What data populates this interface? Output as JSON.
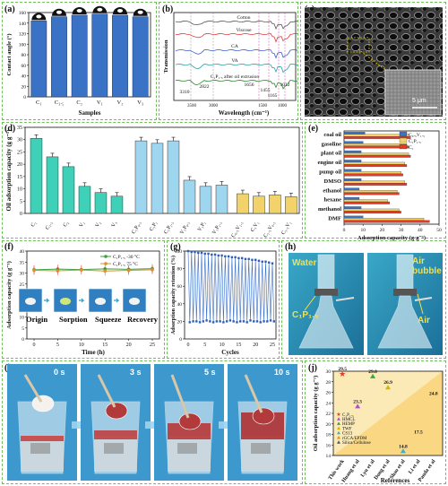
{
  "panel_labels": {
    "a": "(a)",
    "b": "(b)",
    "c": "(c)",
    "d": "(d)",
    "e": "(e)",
    "f": "(f)",
    "g": "(g)",
    "h": "(h)",
    "i": "(i)",
    "j": "(j)"
  },
  "colors": {
    "border": "#6fbf5a",
    "blue": "#3a73c5",
    "cyan": "#3fd0b8",
    "light_blue": "#9fd6ef",
    "yellow": "#f2d36b",
    "orange": "#e38c2c",
    "red": "#e23b2a",
    "green": "#3c9e3c"
  },
  "photo_labels": {
    "c_scale": "5 μm",
    "h_water": "Water",
    "h_air_bubble": "Air\nbubble",
    "h_air": "Air",
    "h_sample": "C₁P₁.₅",
    "f_origin": "Origin",
    "f_sorption": "Sorption",
    "f_squeeze": "Squeeze",
    "f_recovery": "Recovery",
    "i_t0": "0 s",
    "i_t3": "3 s",
    "i_t5": "5 s",
    "i_t10": "10 s"
  },
  "chart_data": [
    {
      "id": "a",
      "type": "bar",
      "categories": [
        "C₁",
        "C₁.₅",
        "C₂",
        "V₁",
        "V₂",
        "V₃"
      ],
      "values": [
        144,
        152,
        155,
        157,
        155,
        152
      ],
      "ylabel": "Contact angle (°)",
      "xlabel": "Samples",
      "ylim": [
        0,
        160
      ],
      "yticks": [
        0,
        20,
        40,
        60,
        80,
        100,
        120,
        140,
        160
      ]
    },
    {
      "id": "b",
      "type": "line",
      "series": [
        {
          "name": "Cotton"
        },
        {
          "name": "Viscose"
        },
        {
          "name": "CA"
        },
        {
          "name": "VA"
        },
        {
          "name": "C₁P₁.₅ after oil extrusion"
        }
      ],
      "xlabel": "Wavelength (cm⁻¹)",
      "ylabel": "Transmission",
      "xticks": [
        3500,
        3000,
        1500,
        1000
      ],
      "annotations": [
        "3310",
        "2822",
        "1656",
        "1455",
        "1165",
        "1012"
      ]
    },
    {
      "id": "d",
      "type": "bar",
      "categories": [
        "C₁",
        "C₁.₅",
        "C₂",
        "V₁",
        "V₂",
        "V₃",
        "C₁P₀.₅",
        "C₁P₁",
        "C₁P₁.₅",
        "V₁P₀.₅",
        "V₁P₁",
        "V₁P₁.₅",
        "C₀.₅V₁.₅",
        "C₁V₁",
        "C₁.₅V₀.₅",
        "C₁.₅V₁"
      ],
      "values": [
        30.5,
        23,
        19,
        11,
        8.5,
        7,
        29.5,
        28.5,
        29.5,
        13.5,
        11,
        11.5,
        8,
        7,
        7.5,
        6.8
      ],
      "ylabel": "Oil adsorption capacity (g g⁻¹)",
      "ylim": [
        0,
        35
      ],
      "yticks": [
        0,
        5,
        10,
        15,
        20,
        25,
        30,
        35
      ]
    },
    {
      "id": "e",
      "type": "bar",
      "categories": [
        "coal oil",
        "gasoline",
        "plant oil",
        "engine oil",
        "pump oil",
        "DMSO",
        "ethanol",
        "hexane",
        "methanol",
        "DMF"
      ],
      "series": [
        {
          "name": "C₀.₅V₁.₅",
          "values": [
            11,
            10,
            9,
            9,
            9,
            9,
            8,
            8,
            9,
            10
          ]
        },
        {
          "name": "C₁P₁.₅",
          "values": [
            34,
            33,
            34,
            32,
            30,
            32,
            28,
            23,
            29,
            42
          ]
        },
        {
          "name": "C₁",
          "values": [
            35,
            34,
            35,
            33,
            31,
            33,
            29,
            24,
            30,
            45
          ]
        }
      ],
      "xlabel": "Adsorption capacity (g·g⁻¹)",
      "xlim": [
        0,
        50
      ],
      "xticks": [
        0,
        10,
        20,
        30,
        40,
        50
      ]
    },
    {
      "id": "f",
      "type": "line",
      "x": [
        0,
        5,
        10,
        15,
        20,
        25
      ],
      "series": [
        {
          "name": "C₁P₁.₅ -30 °C",
          "values": [
            31.5,
            31.8,
            31.6,
            31.9,
            31.7,
            32.0
          ]
        },
        {
          "name": "C₁P₁.₅ 75 °C",
          "values": [
            31.2,
            31.0,
            31.4,
            30.9,
            31.2,
            31.5
          ]
        }
      ],
      "xlabel": "Time (h)",
      "ylabel": "Adsorption capacity (g g⁻¹)",
      "ylim": [
        0,
        40
      ],
      "yticks": [
        0,
        5,
        10,
        15,
        20,
        25,
        30,
        35,
        40
      ],
      "xticks": [
        0,
        5,
        10,
        15,
        20,
        25
      ]
    },
    {
      "id": "g",
      "type": "line",
      "xlabel": "Cycles",
      "ylabel": "Adsorption capacity retention (%)",
      "ylim": [
        0,
        100
      ],
      "yticks": [
        0,
        20,
        40,
        60,
        80,
        100
      ],
      "xticks": [
        0,
        5,
        10,
        15,
        20,
        25
      ],
      "high_values": [
        100,
        99,
        99,
        98,
        98,
        97,
        97,
        96,
        96,
        95,
        95,
        94,
        94,
        93,
        93,
        92,
        92,
        91,
        91,
        90,
        90,
        89,
        88,
        88,
        87,
        86
      ],
      "low_values": [
        19,
        20,
        20,
        19,
        20,
        21,
        20,
        19,
        20,
        20,
        19,
        20,
        21,
        20,
        19,
        20,
        20,
        19,
        21,
        20,
        20,
        19,
        20,
        20,
        21,
        20
      ]
    },
    {
      "id": "j",
      "type": "scatter",
      "categories": [
        "This work",
        "Huang et al",
        "Lyu et al",
        "Dong et al",
        "Shao et al",
        "Li et al",
        "Panda et al"
      ],
      "values": [
        29.5,
        23.3,
        29.0,
        26.9,
        14.8,
        17.5,
        24.8
      ],
      "labels": [
        "29.5",
        "23.3",
        "29.0",
        "26.9",
        "14.8",
        "17.5",
        "24.8"
      ],
      "legend": [
        "C₁P₁.₅",
        "HMCL",
        "HEMP",
        "TWF",
        "CS13",
        "rGCA/EPDM",
        "Silica/Cellulose"
      ],
      "xlabel": "References",
      "ylabel": "Oil adsorption capacity (g g⁻¹)",
      "ylim": [
        14,
        30
      ],
      "yticks": [
        14,
        16,
        18,
        20,
        22,
        24,
        26,
        28,
        30
      ]
    }
  ]
}
